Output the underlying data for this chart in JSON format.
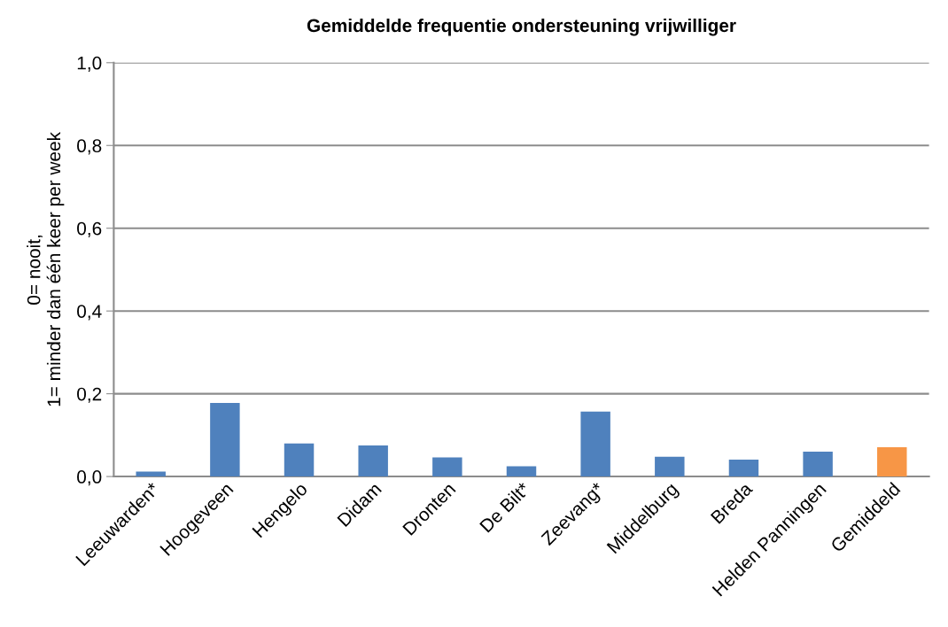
{
  "chart_data": {
    "type": "bar",
    "title": "Gemiddelde frequentie ondersteuning vrijwilliger",
    "ylabel": "0= nooit,\n1= minder dan één keer per week",
    "categories": [
      "Leeuwarden*",
      "Hoogeveen",
      "Hengelo",
      "Didam",
      "Dronten",
      "De Bilt*",
      "Zeevang*",
      "Middelburg",
      "Breda",
      "Helden Panningen",
      "Gemiddeld"
    ],
    "values": [
      0.012,
      0.178,
      0.08,
      0.075,
      0.046,
      0.025,
      0.157,
      0.048,
      0.041,
      0.06,
      0.071
    ],
    "colors": [
      "#4f81bd",
      "#4f81bd",
      "#4f81bd",
      "#4f81bd",
      "#4f81bd",
      "#4f81bd",
      "#4f81bd",
      "#4f81bd",
      "#4f81bd",
      "#4f81bd",
      "#f79646"
    ],
    "ylim": [
      0,
      1.0
    ],
    "yticks": [
      {
        "value": 0,
        "label": "0,0"
      },
      {
        "value": 0.2,
        "label": "0,2"
      },
      {
        "value": 0.4,
        "label": "0,4"
      },
      {
        "value": 0.6,
        "label": "0,6"
      },
      {
        "value": 0.8,
        "label": "0,8"
      },
      {
        "value": 1.0,
        "label": "1,0"
      }
    ],
    "grid": "y",
    "legend": false
  }
}
